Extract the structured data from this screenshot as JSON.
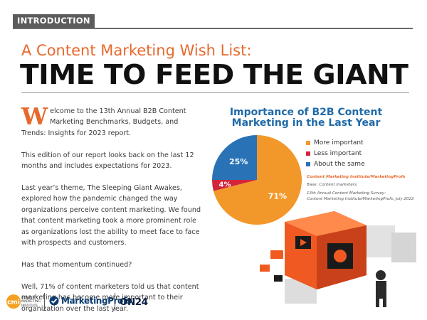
{
  "header": {
    "section_tag": "INTRODUCTION",
    "kicker": "A Content Marketing Wish List:",
    "headline": "TIME TO FEED THE GIANT"
  },
  "body": {
    "dropcap": "W",
    "p1": "elcome to the 13th Annual B2B Content Marketing Benchmarks, Budgets, and Trends: Insights for 2023 report.",
    "p2": "This edition of our report looks back on the last 12 months and includes expectations for 2023.",
    "p3": "Last year’s theme, The Sleeping Giant Awakes, explored how the pandemic changed the way organizations perceive content marketing. We found that content marketing took a more prominent role as organizations lost the ability to meet face to face with prospects and customers.",
    "p4": "Has that momentum continued?",
    "p5": "Well, 71% of content marketers told us that content marketing has become more important to their organization over the last year."
  },
  "chart_data": {
    "type": "pie",
    "title": "Importance of B2B Content Marketing in the Last Year",
    "slices": [
      {
        "name": "More important",
        "value": 71,
        "label": "71%",
        "color": "#f2982a"
      },
      {
        "name": "Less important",
        "value": 4,
        "label": "4%",
        "color": "#d3253a"
      },
      {
        "name": "About the same",
        "value": 25,
        "label": "25%",
        "color": "#2a72b6"
      }
    ],
    "legend_position": "right"
  },
  "source": {
    "brand": "Content Marketing Institute/MarketingProfs",
    "base": "Base: Content marketers.",
    "survey_line1": "13th Annual Content Marketing Survey:",
    "survey_line2": "Content Marketing Institute/MarketingProfs, July 2022"
  },
  "footer": {
    "cmi_mark": "cmi",
    "cmi_line1": "CONTENT",
    "cmi_line2": "MARKETING",
    "cmi_line3": "INSTITUTE",
    "mp_name": "MarketingProfs",
    "on24_name": "ON24"
  }
}
